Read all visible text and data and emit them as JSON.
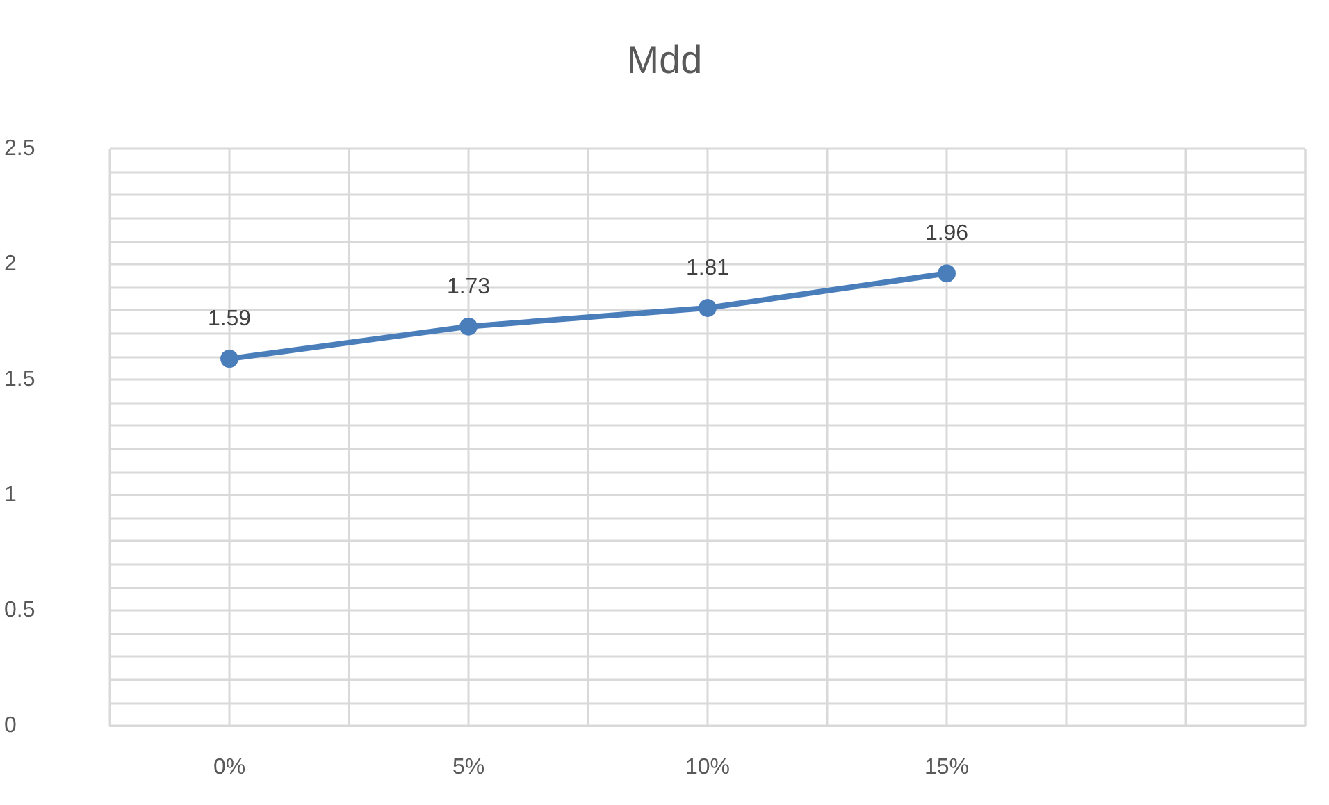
{
  "chart_data": {
    "type": "line",
    "title": "Mdd",
    "categories": [
      "0%",
      "5%",
      "10%",
      "15%",
      null
    ],
    "series": [
      {
        "color": "#4a7ebb",
        "values": [
          1.59,
          1.73,
          1.81,
          1.96,
          null
        ]
      }
    ],
    "ylim": [
      0,
      2.5
    ],
    "yticks": [
      0,
      0.5,
      1,
      1.5,
      2,
      2.5
    ],
    "grid": true,
    "marker": "circle",
    "line_style": "solid",
    "data_labels": true
  }
}
